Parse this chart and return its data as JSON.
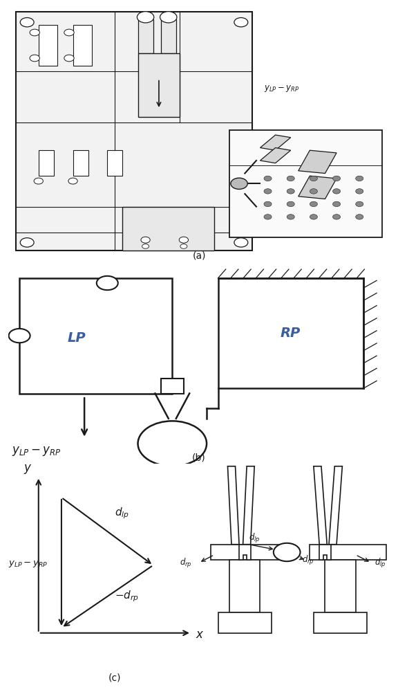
{
  "bg_color": "#ffffff",
  "line_color": "#1a1a1a",
  "blue_text": "#3a5fa0",
  "gray_fill": "#e8e8e8",
  "light_gray": "#f2f2f2",
  "label_a": "(a)",
  "label_b": "(b)",
  "label_c": "(c)",
  "figsize": [
    5.76,
    10.0
  ],
  "dpi": 100
}
